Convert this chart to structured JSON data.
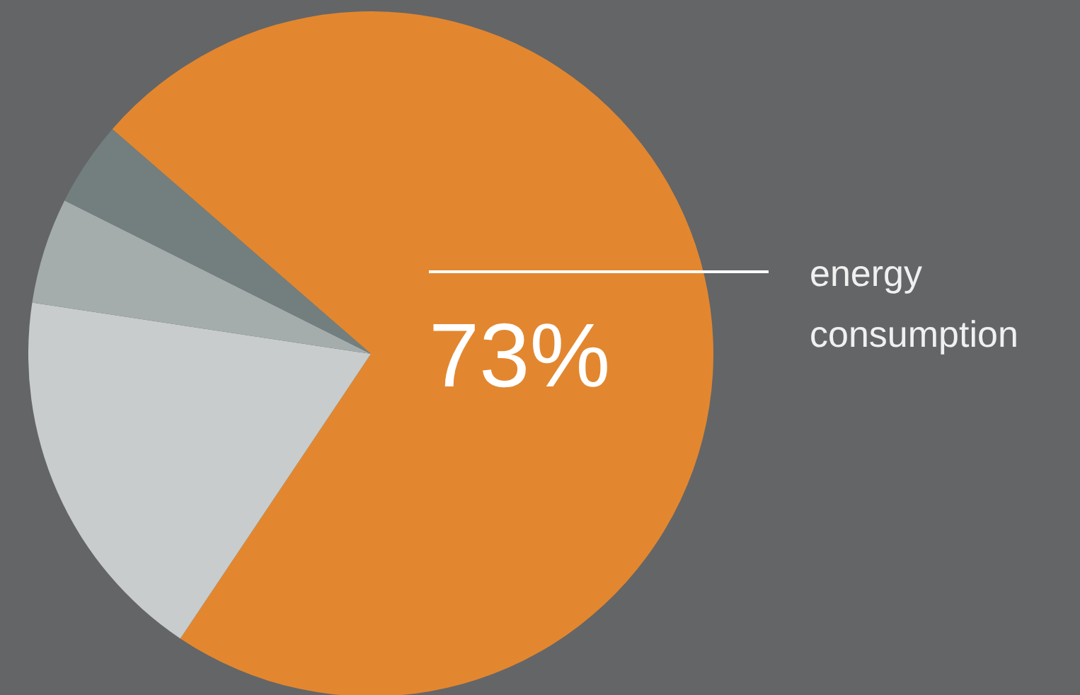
{
  "chart_data": {
    "type": "pie",
    "categories": [
      "energy consumption",
      null,
      null,
      null
    ],
    "values": [
      73,
      18,
      5,
      4
    ],
    "colors": [
      "#e2872f",
      "#c8cccc",
      "#a4acac",
      "#737f7f"
    ],
    "value_labels": [
      "73%",
      null,
      null,
      null
    ]
  }
}
